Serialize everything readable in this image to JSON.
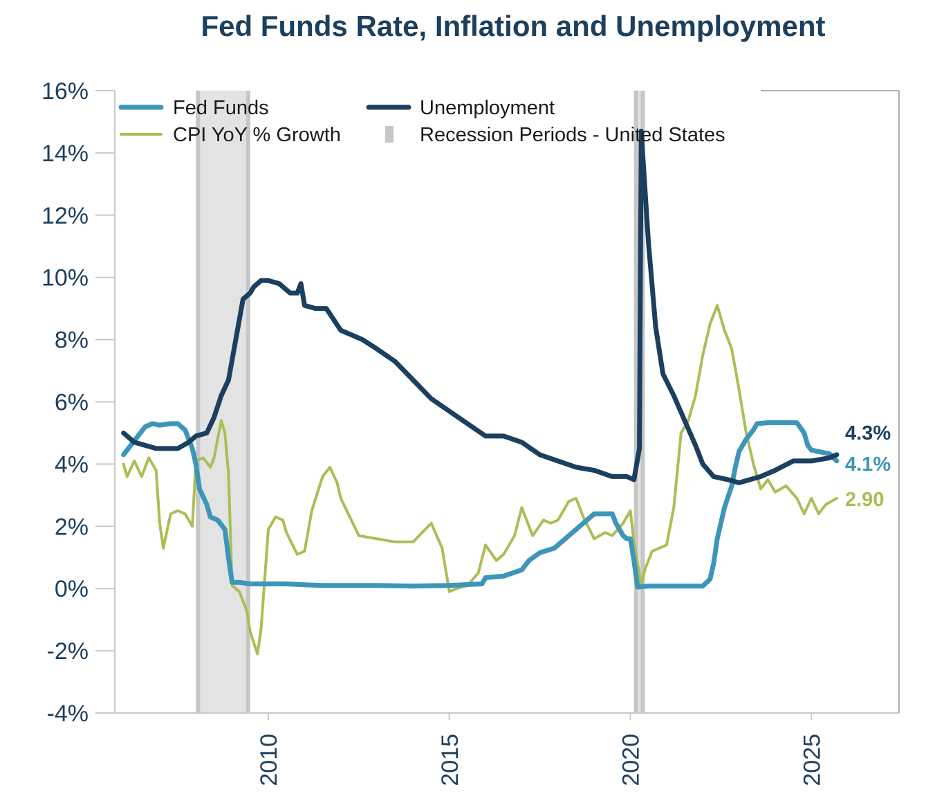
{
  "chart_data": {
    "type": "line",
    "title": "Fed Funds Rate, Inflation and Unemployment",
    "xlim": [
      2005.75,
      2027.5
    ],
    "ylim": [
      -4,
      16
    ],
    "yticks": [
      "-4%",
      "-2%",
      "0%",
      "2%",
      "4%",
      "6%",
      "8%",
      "10%",
      "12%",
      "14%",
      "16%"
    ],
    "ytick_values": [
      -4,
      -2,
      0,
      2,
      4,
      6,
      8,
      10,
      12,
      14,
      16
    ],
    "xticks": [
      "2010",
      "2015",
      "2020",
      "2025"
    ],
    "xtick_values": [
      2010,
      2015,
      2020,
      2025
    ],
    "legend": {
      "placement": "top-left",
      "entries": [
        "Fed Funds",
        "Unemployment",
        "CPI YoY % Growth",
        "Recession Periods - United States"
      ]
    },
    "recessions": [
      [
        2008.0,
        2009.5
      ],
      [
        2020.1,
        2020.4
      ]
    ],
    "end_labels": {
      "unemployment": "4.3%",
      "fed_funds": "4.1%",
      "cpi": "2.90"
    },
    "colors": {
      "fed_funds": "#3d95b8",
      "unemployment": "#1b3f5f",
      "cpi": "#a9bf55",
      "recession": "#d3d3d3"
    },
    "series": [
      {
        "name": "Fed Funds",
        "x": [
          2006.0,
          2006.2,
          2006.4,
          2006.6,
          2006.8,
          2007.0,
          2007.3,
          2007.5,
          2007.7,
          2007.9,
          2008.0,
          2008.1,
          2008.3,
          2008.4,
          2008.6,
          2008.8,
          2008.9,
          2009.0,
          2009.2,
          2009.5,
          2010.0,
          2010.5,
          2011.0,
          2011.5,
          2012.0,
          2013.0,
          2014.0,
          2015.0,
          2015.9,
          2016.0,
          2016.5,
          2017.0,
          2017.2,
          2017.5,
          2017.9,
          2018.2,
          2018.5,
          2018.7,
          2019.0,
          2019.5,
          2019.6,
          2019.8,
          2019.9,
          2020.0,
          2020.1,
          2020.2,
          2020.5,
          2021.0,
          2021.5,
          2022.0,
          2022.2,
          2022.3,
          2022.4,
          2022.6,
          2022.8,
          2022.9,
          2023.0,
          2023.2,
          2023.4,
          2023.5,
          2023.8,
          2024.0,
          2024.6,
          2024.8,
          2024.9,
          2025.0,
          2025.5,
          2025.7
        ],
        "y": [
          4.3,
          4.6,
          4.9,
          5.2,
          5.3,
          5.25,
          5.3,
          5.3,
          5.1,
          4.5,
          4.0,
          3.2,
          2.7,
          2.3,
          2.2,
          1.9,
          1.0,
          0.2,
          0.2,
          0.15,
          0.15,
          0.15,
          0.12,
          0.1,
          0.1,
          0.1,
          0.08,
          0.1,
          0.15,
          0.35,
          0.4,
          0.6,
          0.9,
          1.15,
          1.3,
          1.6,
          1.9,
          2.1,
          2.4,
          2.4,
          2.1,
          1.7,
          1.6,
          1.6,
          0.9,
          0.05,
          0.08,
          0.08,
          0.08,
          0.08,
          0.3,
          0.8,
          1.6,
          2.6,
          3.3,
          3.9,
          4.4,
          4.8,
          5.1,
          5.3,
          5.33,
          5.33,
          5.33,
          5.0,
          4.6,
          4.45,
          4.33,
          4.1
        ]
      },
      {
        "name": "Unemployment",
        "x": [
          2006.0,
          2006.3,
          2006.6,
          2006.9,
          2007.2,
          2007.5,
          2007.8,
          2008.0,
          2008.3,
          2008.5,
          2008.7,
          2008.9,
          2009.1,
          2009.3,
          2009.5,
          2009.6,
          2009.8,
          2010.0,
          2010.3,
          2010.6,
          2010.8,
          2010.9,
          2011.0,
          2011.3,
          2011.6,
          2012.0,
          2012.2,
          2012.6,
          2013.0,
          2013.5,
          2014.0,
          2014.5,
          2015.0,
          2015.5,
          2016.0,
          2016.5,
          2017.0,
          2017.5,
          2018.0,
          2018.5,
          2019.0,
          2019.5,
          2019.9,
          2020.1,
          2020.25,
          2020.3,
          2020.5,
          2020.7,
          2020.9,
          2021.2,
          2021.5,
          2021.8,
          2022.0,
          2022.3,
          2022.7,
          2023.0,
          2023.3,
          2023.6,
          2024.0,
          2024.5,
          2025.0,
          2025.5,
          2025.7
        ],
        "y": [
          5.0,
          4.7,
          4.6,
          4.5,
          4.5,
          4.5,
          4.7,
          4.9,
          5.0,
          5.5,
          6.2,
          6.7,
          8.0,
          9.3,
          9.5,
          9.7,
          9.9,
          9.9,
          9.8,
          9.5,
          9.5,
          9.8,
          9.1,
          9.0,
          9.0,
          8.3,
          8.2,
          8.0,
          7.7,
          7.3,
          6.7,
          6.1,
          5.7,
          5.3,
          4.9,
          4.9,
          4.7,
          4.3,
          4.1,
          3.9,
          3.8,
          3.6,
          3.6,
          3.5,
          4.5,
          14.7,
          11.1,
          8.4,
          6.9,
          6.2,
          5.4,
          4.6,
          4.0,
          3.6,
          3.5,
          3.4,
          3.5,
          3.6,
          3.8,
          4.1,
          4.1,
          4.2,
          4.3
        ]
      },
      {
        "name": "CPI YoY % Growth",
        "x": [
          2006.0,
          2006.1,
          2006.3,
          2006.5,
          2006.7,
          2006.9,
          2007.0,
          2007.1,
          2007.3,
          2007.5,
          2007.7,
          2007.9,
          2008.0,
          2008.2,
          2008.4,
          2008.5,
          2008.7,
          2008.8,
          2008.9,
          2009.0,
          2009.2,
          2009.4,
          2009.5,
          2009.7,
          2009.8,
          2010.0,
          2010.2,
          2010.4,
          2010.5,
          2010.8,
          2011.0,
          2011.2,
          2011.5,
          2011.7,
          2011.9,
          2012.0,
          2012.5,
          2013.0,
          2013.5,
          2014.0,
          2014.5,
          2014.8,
          2015.0,
          2015.2,
          2015.5,
          2015.8,
          2016.0,
          2016.3,
          2016.5,
          2016.8,
          2017.0,
          2017.3,
          2017.6,
          2017.8,
          2018.0,
          2018.3,
          2018.5,
          2018.7,
          2019.0,
          2019.3,
          2019.5,
          2019.8,
          2020.0,
          2020.1,
          2020.3,
          2020.4,
          2020.6,
          2020.8,
          2021.0,
          2021.2,
          2021.4,
          2021.6,
          2021.8,
          2022.0,
          2022.2,
          2022.4,
          2022.6,
          2022.8,
          2023.0,
          2023.2,
          2023.4,
          2023.6,
          2023.8,
          2024.0,
          2024.3,
          2024.6,
          2024.8,
          2025.0,
          2025.2,
          2025.4,
          2025.7
        ],
        "y": [
          4.0,
          3.6,
          4.1,
          3.6,
          4.2,
          3.8,
          2.1,
          1.3,
          2.4,
          2.5,
          2.4,
          2.0,
          4.1,
          4.2,
          3.9,
          4.2,
          5.4,
          5.0,
          3.7,
          0.1,
          -0.1,
          -0.7,
          -1.4,
          -2.1,
          -1.3,
          1.9,
          2.3,
          2.2,
          1.8,
          1.1,
          1.2,
          2.5,
          3.6,
          3.9,
          3.4,
          2.9,
          1.7,
          1.6,
          1.5,
          1.5,
          2.1,
          1.3,
          -0.1,
          0.0,
          0.1,
          0.5,
          1.4,
          0.9,
          1.1,
          1.7,
          2.6,
          1.7,
          2.2,
          2.1,
          2.2,
          2.8,
          2.9,
          2.3,
          1.6,
          1.8,
          1.7,
          2.1,
          2.5,
          1.5,
          0.1,
          0.6,
          1.2,
          1.3,
          1.4,
          2.6,
          5.0,
          5.4,
          6.2,
          7.5,
          8.5,
          9.1,
          8.3,
          7.7,
          6.4,
          5.0,
          4.0,
          3.2,
          3.5,
          3.1,
          3.3,
          2.9,
          2.4,
          2.9,
          2.4,
          2.7,
          2.9
        ]
      }
    ]
  }
}
